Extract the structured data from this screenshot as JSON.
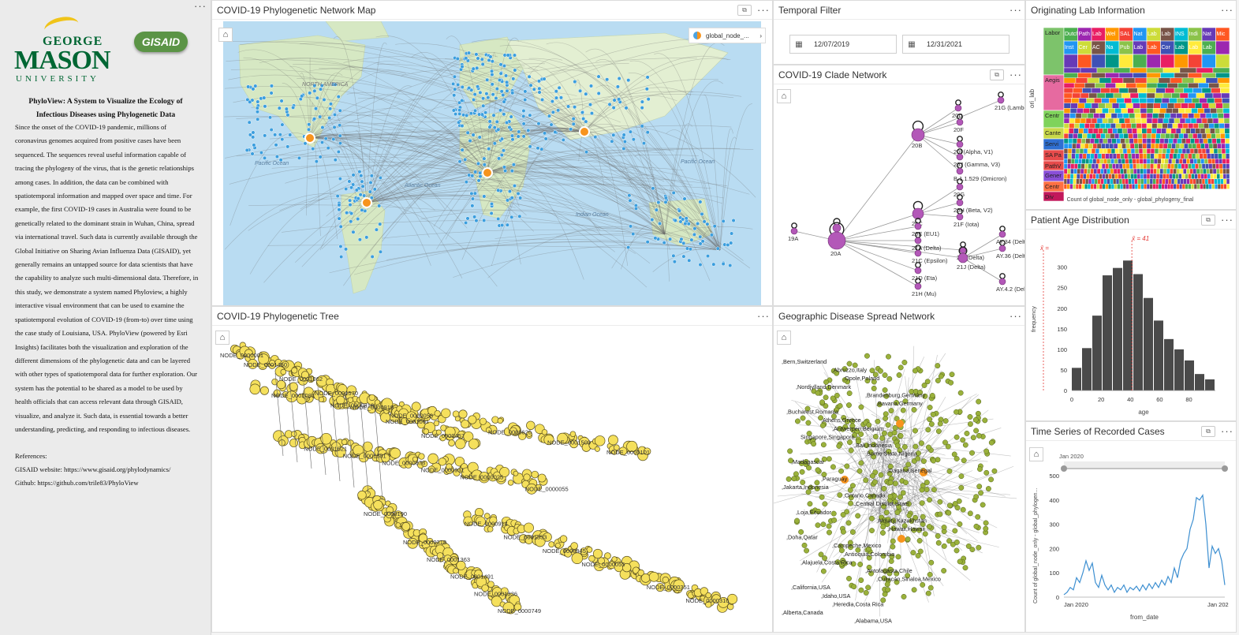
{
  "info_panel": {
    "logo_top": "GEORGE",
    "logo_mid": "MASON",
    "logo_bottom": "UNIVERSITY",
    "gisaid_logo": "GISAID",
    "title": "PhyloView: A System to Visualize the Ecology of Infectious Diseases using Phylogenetic Data",
    "body": "Since the onset of the COVID-19 pandemic, millions of coronavirus genomes acquired from positive cases have been sequenced. The sequences reveal useful information capable of tracing the phylogeny of the virus, that is the genetic relationships among cases. In addition, the data can be combined with spatiotemporal information and mapped over space and time. For example, the first COVID-19 cases in Australia were found to be genetically related to the dominant strain in Wuhan, China, spread via international travel. Such data is currently available through the Global Initiative on Sharing Avian Influenza Data (GISAID), yet generally remains an untapped source for data scientists that have the capability to analyze such multi-dimensional data. Therefore, in this study, we demonstrate a system named Phyloview, a highly interactive visual environment that can be used to examine the spatiotemporal evolution of COVID-19 (from-to) over time using the case study of Louisiana, USA. PhyloView (powered by Esri Insights) facilitates both the visualization and exploration of the different dimensions of the phylogenetic data and can be layered with other types of spatiotemporal data for further exploration. Our system has the potential to be shared as a model to be used by health officials that can access relevant data through GISAID, visualize, and analyze it. Such data, is essential towards a better understanding, predicting, and responding to infectious diseases.",
    "references_label": "References:",
    "ref_gisaid": "GISAID website: https://www.gisaid.org/phylodynamics/",
    "ref_github": "Github: https://github.com/trile83/PhyloView"
  },
  "map_card": {
    "title": "COVID-19 Phylogenetic Network Map",
    "legend_label": "global_node_...",
    "ocean_labels": [
      "Pacific Ocean",
      "Atlantic Ocean",
      "Indian Ocean",
      "Pacific Ocean",
      "NORTH AMERICA"
    ]
  },
  "temporal_card": {
    "title": "Temporal Filter",
    "start_date": "12/07/2019",
    "end_date": "12/31/2021"
  },
  "clade_card": {
    "title": "COVID-19 Clade Network",
    "labels": [
      "21G (Lambda)",
      "20D",
      "20F",
      "20B",
      "20I (Alpha, V1)",
      "20J (Gamma, V3)",
      "B.1.1.529 (Omicron)",
      "20G",
      "20H (Beta, V2)",
      "20C",
      "20E (EU1)",
      "21F (Iota)",
      "19B",
      "19A",
      "20A",
      "21A (Delta)",
      "21C (Epsilon)",
      "21D (Eta)",
      "21H (Mu)",
      "21I (Delta)",
      "21J (Delta)",
      "AY.34 (Delta)",
      "AY.36 (Delta)",
      "AY.4.2 (Delta)"
    ]
  },
  "lab_card": {
    "title": "Originating Lab Information",
    "y_label": "ori_lab",
    "caption": "Count of global_node_only - global_phylogeny_final",
    "labels": [
      "Dutch",
      "Path",
      "Lab",
      "Wel",
      "SAL",
      "Nat",
      "Lab",
      "Lab",
      "INS",
      "Indi",
      "Nat",
      "Mic",
      "Inst",
      "Cer",
      "AC",
      "Na",
      "Pub",
      "Lab",
      "Lab",
      "Cor",
      "Lab",
      "Lab",
      "Lab",
      "Labor",
      "Aegis",
      "Centr",
      "Cante",
      "Servi",
      "SA Pa",
      "PathV",
      "Gener",
      "Centr",
      "Div"
    ]
  },
  "age_card": {
    "title": "Patient Age Distribution",
    "mean_label": "x̄ = 41",
    "left_label": "x̄ =",
    "xlabel": "age",
    "ylabel": "frequency"
  },
  "chart_data": [
    {
      "type": "bar",
      "title": "Patient Age Distribution",
      "xlabel": "age",
      "ylabel": "frequency",
      "bin_starts": [
        0,
        7,
        14,
        21,
        28,
        35,
        42,
        49,
        56,
        63,
        70,
        77,
        84,
        91
      ],
      "values": [
        55,
        103,
        182,
        280,
        298,
        316,
        283,
        225,
        170,
        125,
        100,
        73,
        40,
        27
      ],
      "xticks": [
        0,
        20,
        40,
        60,
        80
      ],
      "yticks": [
        0,
        50,
        100,
        150,
        200,
        250,
        300
      ],
      "ylim": [
        0,
        330
      ],
      "mean": 41
    },
    {
      "type": "line",
      "title": "Time Series of Recorded Cases",
      "xlabel": "from_date",
      "ylabel": "Count of global_node_only - global_phylogen...",
      "x_start_label": "Jan 2020",
      "x_end_label": "Jan 202",
      "slider_label": "Jan 2020",
      "yticks": [
        0,
        100,
        200,
        300,
        400,
        500
      ],
      "ylim": [
        0,
        520
      ],
      "values": [
        10,
        20,
        40,
        30,
        80,
        60,
        100,
        150,
        110,
        140,
        60,
        40,
        90,
        50,
        30,
        50,
        20,
        40,
        30,
        50,
        20,
        40,
        30,
        45,
        25,
        50,
        30,
        55,
        35,
        60,
        40,
        70,
        50,
        85,
        60,
        120,
        80,
        150,
        180,
        200,
        280,
        320,
        410,
        400,
        420,
        300,
        120,
        210,
        180,
        200,
        150,
        50
      ]
    }
  ],
  "ts_card": {
    "title": "Time Series of Recorded Cases",
    "xlabel": "from_date",
    "ylabel": "Count of global_node_only - global_phylogen...",
    "x_start": "Jan 2020",
    "x_end": "Jan 202",
    "slider_label": "Jan 2020"
  },
  "tree_card": {
    "title": "COVID-19 Phylogenetic Tree",
    "node_labels": [
      "NODE_0000001",
      "NODE_0000053",
      "NODE_0000025",
      "NODE_0000190",
      "NODE_0000055",
      "NODE_0000457",
      "NODE_0000816",
      "NODE_0000931",
      "NODE_0000749",
      "NODE_0000945",
      "NODE_0001061",
      "NODE_0001081",
      "NODE_0000878",
      "NODE_0001336",
      "NODE_0001353",
      "NODE_0000919",
      "NODE_0000101",
      "NODE_0001881",
      "NODE_0001491",
      "NODE_0000914",
      "NODE_0001570",
      "NODE_0001509",
      "NODE_0001621",
      "NODE_0001363",
      "NODE_0000316",
      "NODE_0001062",
      "NODE_0000626",
      "NODE_0000055",
      "NODE_0000318",
      "NODE_0000351",
      "NODE_0001450"
    ]
  },
  "geo_card": {
    "title": "Geographic Disease Spread Network",
    "place_labels": [
      ",Bern,Switzerland",
      ",Abruzzo,Italy",
      ",Opole,Poland",
      ",Nordjylland,Denmark",
      ",Brandenburg,Germany",
      ",Bavaria,Germany",
      ",Bucharest,Romania",
      ",Athens,Greece",
      ",Antwerpen,Belgium",
      "Singapore,Singapore",
      ",Bali,Indonesia",
      ",Borno State,Nigeria",
      ",Madagascar",
      ",Dagana,Senegal",
      ",Paraguay",
      ",Jakarta,Indonesia",
      ",Ontario,Canada",
      ",Central District,Israel",
      ",Loja,Ecuador",
      ",Almaty,Kazakhstan",
      ",Hawaii,Hawaii",
      ",Doha,Qatar",
      ",Campeche,Mexico",
      ",Antioquia,Colombia",
      ",Alajuela,Costa Rica",
      ",Antofagasta,Chile",
      ",Culiacán,Sinaloa,Mexico",
      ",California,USA",
      ",Idaho,USA",
      ",Heredia,Costa Rica",
      ",Alberta,Canada",
      ",Alabama,USA"
    ]
  }
}
